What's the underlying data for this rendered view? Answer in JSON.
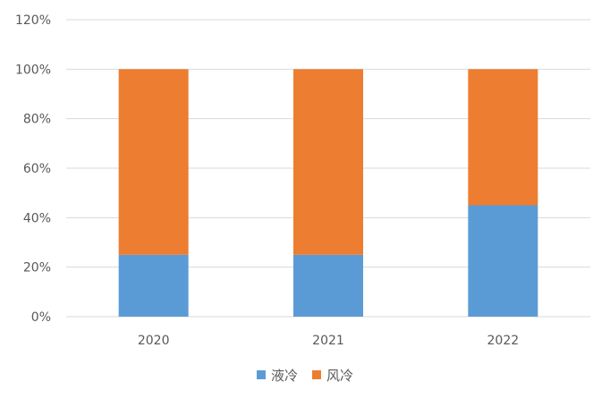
{
  "chart_data": {
    "type": "bar",
    "stacked": true,
    "percent_axis": true,
    "categories": [
      "2020",
      "2021",
      "2022"
    ],
    "series": [
      {
        "name": "液冷",
        "color": "#5b9bd5",
        "values": [
          25,
          25,
          45
        ]
      },
      {
        "name": "风冷",
        "color": "#ed7d31",
        "values": [
          75,
          75,
          55
        ]
      }
    ],
    "ylim": [
      0,
      120
    ],
    "y_ticks": [
      "0%",
      "20%",
      "40%",
      "60%",
      "80%",
      "100%",
      "120%"
    ],
    "y_tick_values": [
      0,
      20,
      40,
      60,
      80,
      100,
      120
    ],
    "grid": true,
    "grid_color": "#d9d9d9",
    "legend_position": "bottom-center",
    "title": "",
    "xlabel": "",
    "ylabel": ""
  }
}
